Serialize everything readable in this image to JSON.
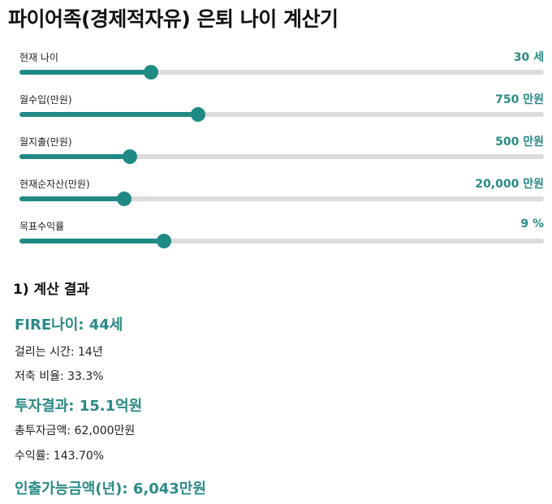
{
  "title": "파이어족(경제적자유) 은퇴 나이 계산기",
  "colors": {
    "accent": "#2a8a86",
    "track": "#dcdcdc"
  },
  "sliders": [
    {
      "label": "현재 나이",
      "value_text": "30 세",
      "level": 0.25
    },
    {
      "label": "월수입(만원)",
      "value_text": "750 만원",
      "level": 0.34
    },
    {
      "label": "월지출(만원)",
      "value_text": "500 만원",
      "level": 0.21
    },
    {
      "label": "현재순자산(만원)",
      "value_text": "20,000 만원",
      "level": 0.2
    },
    {
      "label": "목표수익률",
      "value_text": "9 %",
      "level": 0.275
    }
  ],
  "results": {
    "section_title": "1) 계산 결과",
    "fire_age": "FIRE나이: 44세",
    "years_needed": "걸리는 시간: 14년",
    "savings_rate": "저축 비율: 33.3%",
    "investment_result": "투자결과: 15.1억원",
    "total_invested": "총투자금액: 62,000만원",
    "return_rate": "수익률: 143.70%",
    "withdrawal": "인출가능금액(년): 6,043만원"
  }
}
